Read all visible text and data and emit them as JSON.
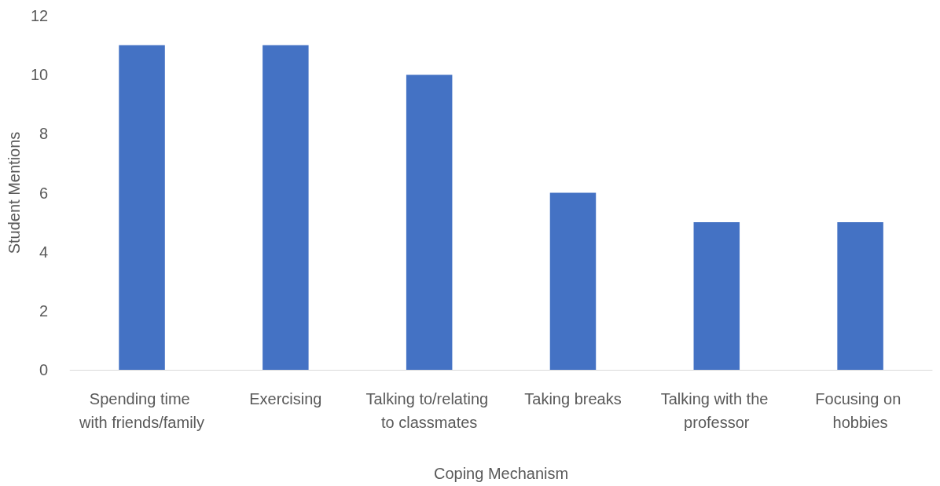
{
  "chart_data": {
    "type": "bar",
    "xlabel": "Coping Mechanism",
    "ylabel": "Student Mentions",
    "categories": [
      "Spending time with friends/family",
      "Exercising",
      "Talking to/relating to classmates",
      "Taking breaks",
      "Talking with the professor",
      "Focusing on hobbies"
    ],
    "values": [
      11,
      11,
      10,
      6,
      5,
      5
    ],
    "color": "#4472c4",
    "ylim": [
      0,
      12
    ],
    "yticks": [
      0,
      2,
      4,
      6,
      8,
      10,
      12
    ],
    "grid": false
  }
}
